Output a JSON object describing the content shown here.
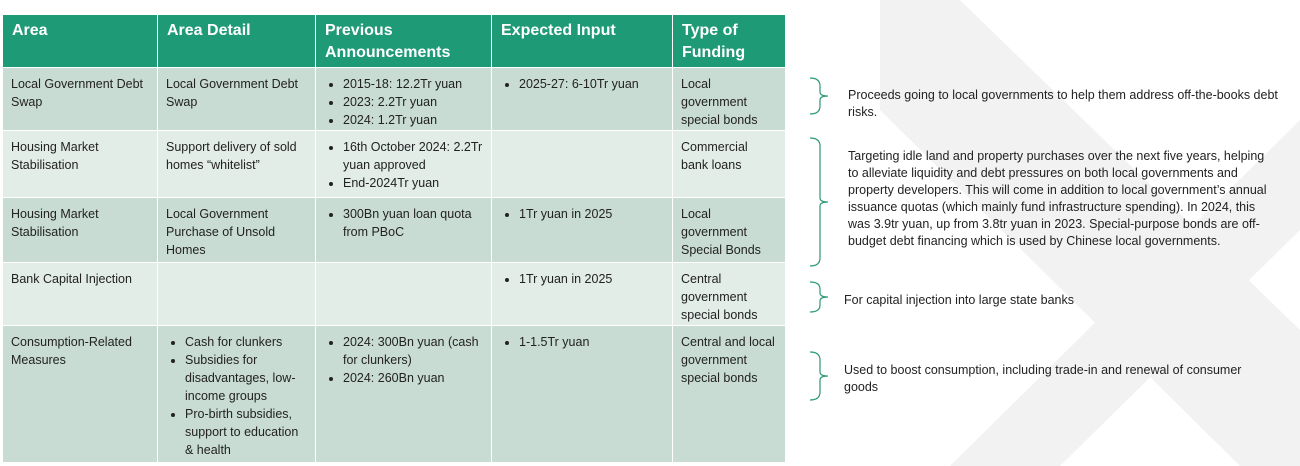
{
  "table": {
    "headers": [
      "Area",
      "Area Detail",
      "Previous Announcements",
      "Expected Input",
      "Type of Funding"
    ],
    "rows": [
      [
        "Local Government Debt Swap",
        "Local Government Debt Swap",
        [
          "2015-18: 12.2Tr yuan",
          "2023: 2.2Tr yuan",
          "2024: 1.2Tr yuan"
        ],
        [
          "2025-27: 6-10Tr yuan"
        ],
        "Local government special bonds"
      ],
      [
        "Housing Market Stabilisation",
        "Support delivery of sold homes “whitelist”",
        [
          "16th October 2024: 2.2Tr yuan approved",
          "End-2024Tr yuan"
        ],
        null,
        "Commercial bank loans"
      ],
      [
        "Housing Market Stabilisation",
        "Local Government Purchase of Unsold Homes",
        [
          "300Bn yuan loan quota from PBoC"
        ],
        [
          "1Tr yuan in 2025"
        ],
        "Local government Special Bonds"
      ],
      [
        "Bank Capital Injection",
        null,
        null,
        [
          "1Tr yuan in 2025"
        ],
        "Central government special bonds"
      ],
      [
        "Consumption-Related Measures",
        [
          "Cash for clunkers",
          "Subsidies for disadvantages, low-income groups",
          "Pro-birth subsidies, support to education & health"
        ],
        [
          "2024: 300Bn yuan (cash for clunkers)",
          "2024: 260Bn yuan"
        ],
        [
          "1-1.5Tr yuan"
        ],
        "Central and local government special bonds"
      ]
    ]
  },
  "notes": [
    "Proceeds going to local governments to help them address off-the-books debt risks.",
    "Targeting idle land and property purchases over the next five years, helping to alleviate liquidity and debt pressures on both local governments and property developers. This will come in addition to local government’s annual issuance quotas (which mainly fund infrastructure spending). In 2024, this was 3.9tr yuan, up from 3.8tr yuan in 2023. Special-purpose bonds are off-budget debt financing which is used by Chinese local governments.",
    "For capital injection into large state banks",
    "Used to boost consumption, including trade-in and renewal of consumer goods"
  ]
}
